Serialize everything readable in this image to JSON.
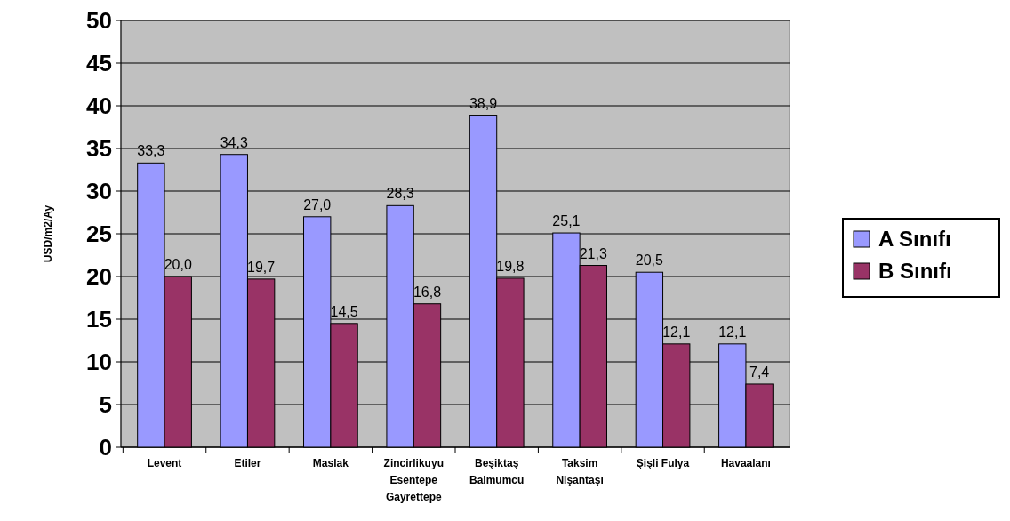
{
  "chart_data": {
    "type": "bar",
    "ylabel": "USD/m2/Ay",
    "categories": [
      "Levent",
      "Etiler",
      "Maslak",
      "Zincirlikuyu\nEsentepe\nGayrettepe",
      "Beşiktaş\nBalmumcu",
      "Taksim\nNişantaşı",
      "Şişli Fulya",
      "Havaalanı"
    ],
    "series": [
      {
        "name": "A Sınıfı",
        "color": "#9999ff",
        "values": [
          33.3,
          34.3,
          27.0,
          28.3,
          38.9,
          25.1,
          20.5,
          12.1
        ],
        "value_labels": [
          "33,3",
          "34,3",
          "27,0",
          "28,3",
          "38,9",
          "25,1",
          "20,5",
          "12,1"
        ]
      },
      {
        "name": "B Sınıfı",
        "color": "#993366",
        "values": [
          20.0,
          19.7,
          14.5,
          16.8,
          19.8,
          21.3,
          12.1,
          7.4
        ],
        "value_labels": [
          "20,0",
          "19,7",
          "14,5",
          "16,8",
          "19,8",
          "21,3",
          "12,1",
          "7,4"
        ]
      }
    ],
    "ylim": [
      0,
      50
    ],
    "yticks": [
      0,
      5,
      10,
      15,
      20,
      25,
      30,
      35,
      40,
      45,
      50
    ],
    "grid": "y",
    "legend": "right"
  }
}
